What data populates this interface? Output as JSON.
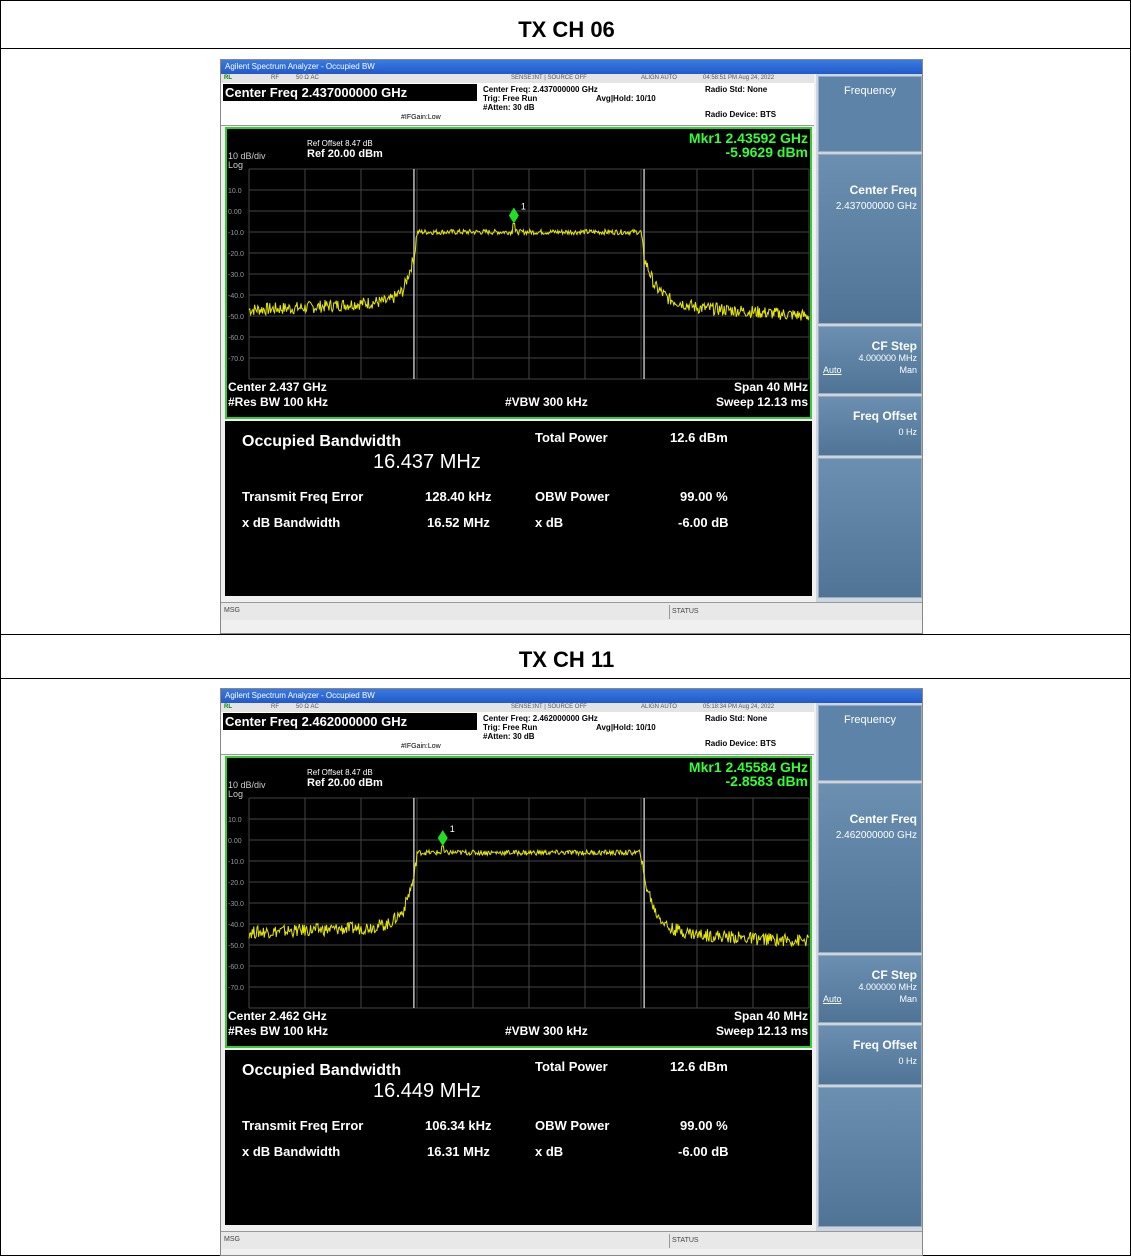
{
  "panels": [
    {
      "section_title": "TX CH 06",
      "window_title": "Agilent Spectrum Analyzer - Occupied BW",
      "status_strip": {
        "rl": "RL",
        "rf": "RF",
        "impedance": "50 Ω  AC",
        "sense": "SENSE:INT | SOURCE OFF",
        "align": "ALIGN AUTO",
        "timestamp": "04:58:51 PM Aug 24, 2022"
      },
      "center_freq_header": "Center Freq 2.437000000 GHz",
      "ifgain": "#IFGain:Low",
      "center_freq_info": "Center Freq: 2.437000000 GHz",
      "trig": "Trig: Free Run",
      "avg_hold": "Avg|Hold: 10/10",
      "atten": "#Atten: 30 dB",
      "radio_std": "Radio Std: None",
      "radio_device": "Radio Device: BTS",
      "ref_offset": "Ref Offset 8.47 dB",
      "ref_level": "Ref 20.00 dBm",
      "scale": "10 dB/div",
      "log": "Log",
      "marker_label": "Mkr1  2.43592 GHz",
      "marker_value": "-5.9629 dBm",
      "center": "Center  2.437 GHz",
      "span": "Span 40 MHz",
      "res_bw": "#Res BW  100 kHz",
      "vbw": "#VBW  300 kHz",
      "sweep": "Sweep  12.13 ms",
      "results": {
        "obw_label": "Occupied Bandwidth",
        "obw_value": "16.437 MHz",
        "total_power_label": "Total Power",
        "total_power": "12.6 dBm",
        "tfe_label": "Transmit Freq Error",
        "tfe_value": "128.40 kHz",
        "obw_power_label": "OBW Power",
        "obw_power": "99.00 %",
        "xdb_bw_label": "x dB Bandwidth",
        "xdb_bw_value": "16.52 MHz",
        "xdb_label": "x dB",
        "xdb_value": "-6.00 dB"
      },
      "softkeys": {
        "menu_title": "Frequency",
        "center_freq_label": "Center Freq",
        "center_freq_value": "2.437000000 GHz",
        "cf_step_label": "CF Step",
        "cf_step_value": "4.000000 MHz",
        "auto": "Auto",
        "man": "Man",
        "freq_offset_label": "Freq Offset",
        "freq_offset_value": "0 Hz"
      },
      "msg": "MSG",
      "status": "STATUS"
    },
    {
      "section_title": "TX CH 11",
      "window_title": "Agilent Spectrum Analyzer - Occupied BW",
      "status_strip": {
        "rl": "RL",
        "rf": "RF",
        "impedance": "50 Ω  AC",
        "sense": "SENSE:INT | SOURCE OFF",
        "align": "ALIGN AUTO",
        "timestamp": "05:18:34 PM Aug 24, 2022"
      },
      "center_freq_header": "Center Freq 2.462000000 GHz",
      "ifgain": "#IFGain:Low",
      "center_freq_info": "Center Freq: 2.462000000 GHz",
      "trig": "Trig: Free Run",
      "avg_hold": "Avg|Hold: 10/10",
      "atten": "#Atten: 30 dB",
      "radio_std": "Radio Std: None",
      "radio_device": "Radio Device: BTS",
      "ref_offset": "Ref Offset 8.47 dB",
      "ref_level": "Ref 20.00 dBm",
      "scale": "10 dB/div",
      "log": "Log",
      "marker_label": "Mkr1  2.45584 GHz",
      "marker_value": "-2.8583 dBm",
      "center": "Center  2.462 GHz",
      "span": "Span 40 MHz",
      "res_bw": "#Res BW  100 kHz",
      "vbw": "#VBW  300 kHz",
      "sweep": "Sweep  12.13 ms",
      "results": {
        "obw_label": "Occupied Bandwidth",
        "obw_value": "16.449 MHz",
        "total_power_label": "Total Power",
        "total_power": "12.6 dBm",
        "tfe_label": "Transmit Freq Error",
        "tfe_value": "106.34 kHz",
        "obw_power_label": "OBW Power",
        "obw_power": "99.00 %",
        "xdb_bw_label": "x dB Bandwidth",
        "xdb_bw_value": "16.31 MHz",
        "xdb_label": "x dB",
        "xdb_value": "-6.00 dB"
      },
      "softkeys": {
        "menu_title": "Frequency",
        "center_freq_label": "Center Freq",
        "center_freq_value": "2.462000000 GHz",
        "cf_step_label": "CF Step",
        "cf_step_value": "4.000000 MHz",
        "auto": "Auto",
        "man": "Man",
        "freq_offset_label": "Freq Offset",
        "freq_offset_value": "0 Hz"
      },
      "msg": "MSG",
      "status": "STATUS"
    }
  ],
  "chart_data": [
    {
      "type": "line",
      "ylabel": "dBm",
      "ylim": [
        -80,
        20
      ],
      "y_ticks": [
        "10.0",
        "0.00",
        "-10.0",
        "-20.0",
        "-30.0",
        "-40.0",
        "-50.0",
        "-60.0",
        "-70.0"
      ],
      "x_center_ghz": 2.437,
      "span_mhz": 40,
      "xlim_mhz": [
        -20,
        20
      ],
      "trace_color": "#e6e600",
      "series": [
        {
          "x_mhz": [
            -20,
            -16,
            -12,
            -10,
            -9,
            -8.2,
            -8,
            0,
            8,
            8.2,
            9,
            10,
            12,
            16,
            20
          ],
          "y_dbm": [
            -47,
            -46,
            -44,
            -43,
            -38,
            -22,
            -10,
            -10,
            -10,
            -22,
            -36,
            -42,
            -46,
            -48,
            -50
          ]
        }
      ],
      "obw_markers_mhz": [
        -8.2185,
        8.2185
      ],
      "marker": {
        "x_ghz": 2.43592,
        "y_dbm": -5.9629
      }
    },
    {
      "type": "line",
      "ylabel": "dBm",
      "ylim": [
        -80,
        20
      ],
      "y_ticks": [
        "10.0",
        "0.00",
        "-10.0",
        "-20.0",
        "-30.0",
        "-40.0",
        "-50.0",
        "-60.0",
        "-70.0"
      ],
      "x_center_ghz": 2.462,
      "span_mhz": 40,
      "xlim_mhz": [
        -20,
        20
      ],
      "trace_color": "#e6e600",
      "series": [
        {
          "x_mhz": [
            -20,
            -16,
            -12,
            -10,
            -9,
            -8.2,
            -8,
            0,
            8,
            8.2,
            9,
            10,
            12,
            16,
            20
          ],
          "y_dbm": [
            -44,
            -43,
            -42,
            -40,
            -34,
            -18,
            -6,
            -6,
            -6,
            -18,
            -34,
            -42,
            -45,
            -47,
            -48
          ]
        }
      ],
      "obw_markers_mhz": [
        -8.2245,
        8.2245
      ],
      "marker": {
        "x_ghz": 2.45584,
        "y_dbm": -2.8583
      }
    }
  ]
}
